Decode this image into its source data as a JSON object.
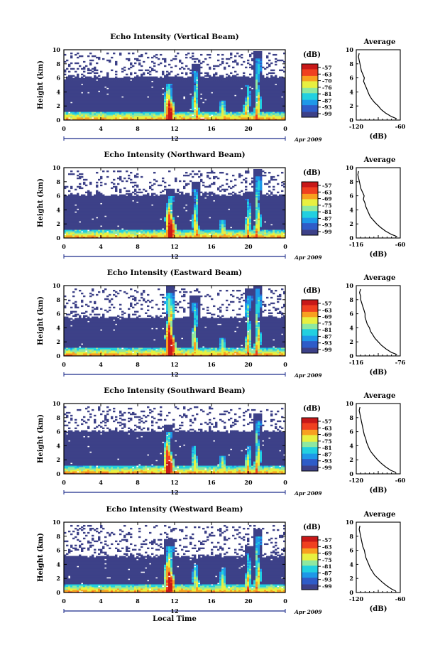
{
  "chart_data": [
    {
      "type": "heatmap",
      "title": "Echo Intensity (Vertical Beam)",
      "ylabel": "Height (km)",
      "xlim": [
        0,
        24
      ],
      "ylim": [
        0,
        10
      ],
      "x_ticks": [
        "0",
        "4",
        "8",
        "12",
        "16",
        "20",
        "0"
      ],
      "y_ticks": [
        "0",
        "2",
        "4",
        "6",
        "8",
        "10"
      ],
      "date_label": "12",
      "month_label": "Apr 2009",
      "colorbar": {
        "title": "(dB)",
        "ticks": [
          "-57",
          "-63",
          "-70",
          "-76",
          "-81",
          "-87",
          "-93",
          "-99"
        ]
      },
      "average": {
        "title": "Average",
        "xlabel": "(dB)",
        "xticks": [
          "-120",
          "-60"
        ],
        "xlim": [
          -120,
          -60
        ],
        "height": [
          0.2,
          0.5,
          1,
          1.5,
          2,
          2.5,
          3,
          3.5,
          4,
          4.5,
          5,
          5.5,
          6,
          6.5,
          7,
          7.5,
          8,
          8.5,
          9,
          9.5
        ],
        "value": [
          -65,
          -72,
          -80,
          -86,
          -90,
          -95,
          -99,
          -102,
          -104,
          -106,
          -108,
          -110,
          -109,
          -111,
          -113,
          -114,
          -115,
          -116,
          -117,
          -116
        ]
      },
      "features": [
        {
          "kind": "clear-air layer",
          "top_km": 6.2
        },
        {
          "kind": "echo plume",
          "time_h": 11.4,
          "peak_km": 5.2
        },
        {
          "kind": "echo plume",
          "time_h": 14.3,
          "peak_km": 7.0
        },
        {
          "kind": "echo plume",
          "time_h": 17.3,
          "peak_km": 2.8
        },
        {
          "kind": "echo plume",
          "time_h": 19.9,
          "peak_km": 5.0
        },
        {
          "kind": "echo plume",
          "time_h": 21.0,
          "peak_km": 8.8
        }
      ]
    },
    {
      "type": "heatmap",
      "title": "Echo Intensity (Northward Beam)",
      "ylabel": "Height (km)",
      "xlim": [
        0,
        24
      ],
      "ylim": [
        0,
        10
      ],
      "x_ticks": [
        "0",
        "4",
        "8",
        "12",
        "16",
        "20",
        "0"
      ],
      "y_ticks": [
        "0",
        "2",
        "4",
        "6",
        "8",
        "10"
      ],
      "date_label": "12",
      "month_label": "Apr 2009",
      "colorbar": {
        "title": "(dB)",
        "ticks": [
          "-57",
          "-63",
          "-69",
          "-75",
          "-81",
          "-87",
          "-93",
          "-99"
        ]
      },
      "average": {
        "title": "Average",
        "xlabel": "(dB)",
        "xticks": [
          "-116",
          "-60"
        ],
        "xlim": [
          -116,
          -60
        ],
        "height": [
          0.2,
          0.5,
          1,
          1.5,
          2,
          2.5,
          3,
          3.5,
          4,
          4.5,
          5,
          5.5,
          6,
          6.5,
          7,
          7.5,
          8,
          8.5,
          9,
          9.5
        ],
        "value": [
          -64,
          -71,
          -79,
          -85,
          -90,
          -94,
          -98,
          -100,
          -102,
          -104,
          -105,
          -107,
          -106,
          -108,
          -110,
          -111,
          -112,
          -113,
          -114,
          -113
        ]
      },
      "features": [
        {
          "kind": "clear-air layer",
          "top_km": 6.2
        },
        {
          "kind": "echo plume",
          "time_h": 11.5,
          "peak_km": 6.0
        },
        {
          "kind": "echo plume",
          "time_h": 14.3,
          "peak_km": 7.0
        },
        {
          "kind": "echo plume",
          "time_h": 17.3,
          "peak_km": 2.5
        },
        {
          "kind": "echo plume",
          "time_h": 20.0,
          "peak_km": 5.5
        },
        {
          "kind": "echo plume",
          "time_h": 21.0,
          "peak_km": 8.8
        }
      ]
    },
    {
      "type": "heatmap",
      "title": "Echo Intensity (Eastward Beam)",
      "ylabel": "Height (km)",
      "xlim": [
        0,
        24
      ],
      "ylim": [
        0,
        10
      ],
      "x_ticks": [
        "0",
        "4",
        "8",
        "12",
        "16",
        "20",
        "0"
      ],
      "y_ticks": [
        "0",
        "2",
        "4",
        "6",
        "8",
        "10"
      ],
      "date_label": "12",
      "month_label": "Apr 2009",
      "colorbar": {
        "title": "(dB)",
        "ticks": [
          "-57",
          "-63",
          "-69",
          "-75",
          "-81",
          "-87",
          "-93",
          "-99"
        ]
      },
      "average": {
        "title": "Average",
        "xlabel": "(dB)",
        "xticks": [
          "-116",
          "-76"
        ],
        "xlim": [
          -116,
          -76
        ],
        "height": [
          0.2,
          0.5,
          1,
          1.5,
          2,
          2.5,
          3,
          3.5,
          4,
          4.5,
          5,
          5.5,
          6,
          6.5,
          7,
          7.5,
          8,
          8.5,
          9,
          9.5
        ],
        "value": [
          -79,
          -84,
          -89,
          -93,
          -96,
          -99,
          -101,
          -103,
          -104,
          -106,
          -107,
          -108,
          -108,
          -109,
          -110,
          -111,
          -112,
          -112,
          -113,
          -112
        ]
      },
      "features": [
        {
          "kind": "clear-air layer",
          "top_km": 5.5
        },
        {
          "kind": "echo plume",
          "time_h": 11.5,
          "peak_km": 9.0
        },
        {
          "kind": "echo plume",
          "time_h": 14.2,
          "peak_km": 7.5
        },
        {
          "kind": "echo plume",
          "time_h": 17.3,
          "peak_km": 2.5
        },
        {
          "kind": "echo plume",
          "time_h": 20.0,
          "peak_km": 8.5
        },
        {
          "kind": "echo plume",
          "time_h": 21.0,
          "peak_km": 9.5
        }
      ]
    },
    {
      "type": "heatmap",
      "title": "Echo Intensity (Southward Beam)",
      "ylabel": "Height (km)",
      "xlim": [
        0,
        24
      ],
      "ylim": [
        0,
        10
      ],
      "x_ticks": [
        "0",
        "4",
        "8",
        "12",
        "16",
        "20",
        "0"
      ],
      "y_ticks": [
        "0",
        "2",
        "4",
        "6",
        "8",
        "10"
      ],
      "date_label": "12",
      "month_label": "Apr 2009",
      "colorbar": {
        "title": "(dB)",
        "ticks": [
          "-57",
          "-63",
          "-69",
          "-75",
          "-81",
          "-87",
          "-93",
          "-99"
        ]
      },
      "average": {
        "title": "Average",
        "xlabel": "(dB)",
        "xticks": [
          "-120",
          "-60"
        ],
        "xlim": [
          -120,
          -60
        ],
        "height": [
          0.2,
          0.5,
          1,
          1.5,
          2,
          2.5,
          3,
          3.5,
          4,
          4.5,
          5,
          5.5,
          6,
          6.5,
          7,
          7.5,
          8,
          8.5,
          9,
          9.5
        ],
        "value": [
          -66,
          -73,
          -80,
          -86,
          -91,
          -95,
          -99,
          -102,
          -104,
          -106,
          -107,
          -109,
          -110,
          -111,
          -112,
          -113,
          -114,
          -115,
          -116,
          -115
        ]
      },
      "features": [
        {
          "kind": "clear-air layer",
          "top_km": 6.1
        },
        {
          "kind": "echo plume",
          "time_h": 11.3,
          "peak_km": 6.0
        },
        {
          "kind": "echo plume",
          "time_h": 14.2,
          "peak_km": 4.0
        },
        {
          "kind": "echo plume",
          "time_h": 17.3,
          "peak_km": 2.5
        },
        {
          "kind": "echo plume",
          "time_h": 20.0,
          "peak_km": 4.0
        },
        {
          "kind": "echo plume",
          "time_h": 21.0,
          "peak_km": 7.5
        }
      ]
    },
    {
      "type": "heatmap",
      "title": "Echo Intensity (Westward Beam)",
      "ylabel": "Height (km)",
      "xlabel": "Local Time",
      "xlim": [
        0,
        24
      ],
      "ylim": [
        0,
        10
      ],
      "x_ticks": [
        "0",
        "4",
        "8",
        "12",
        "16",
        "20",
        "0"
      ],
      "y_ticks": [
        "0",
        "2",
        "4",
        "6",
        "8",
        "10"
      ],
      "date_label": "12",
      "month_label": "Apr 2009",
      "colorbar": {
        "title": "(dB)",
        "ticks": [
          "-57",
          "-63",
          "-69",
          "-75",
          "-81",
          "-87",
          "-93",
          "-99"
        ]
      },
      "average": {
        "title": "Average",
        "xlabel": "(dB)",
        "xticks": [
          "-120",
          "-60"
        ],
        "xlim": [
          -120,
          -60
        ],
        "height": [
          0.2,
          0.5,
          1,
          1.5,
          2,
          2.5,
          3,
          3.5,
          4,
          4.5,
          5,
          5.5,
          6,
          6.5,
          7,
          7.5,
          8,
          8.5,
          9,
          9.5
        ],
        "value": [
          -66,
          -72,
          -79,
          -85,
          -90,
          -95,
          -98,
          -101,
          -103,
          -105,
          -107,
          -108,
          -109,
          -111,
          -112,
          -113,
          -114,
          -115,
          -116,
          -115
        ]
      },
      "features": [
        {
          "kind": "clear-air layer",
          "top_km": 5.2
        },
        {
          "kind": "echo plume",
          "time_h": 11.4,
          "peak_km": 6.5
        },
        {
          "kind": "echo plume",
          "time_h": 14.3,
          "peak_km": 4.0
        },
        {
          "kind": "echo plume",
          "time_h": 17.3,
          "peak_km": 3.5
        },
        {
          "kind": "echo plume",
          "time_h": 20.0,
          "peak_km": 5.5
        },
        {
          "kind": "echo plume",
          "time_h": 21.0,
          "peak_km": 8.0
        }
      ]
    }
  ],
  "colors": {
    "background": "#3d4188",
    "colormap": [
      "#3d4188",
      "#2f5cc8",
      "#1e98e8",
      "#22d0e0",
      "#8ee8a0",
      "#e8f040",
      "#f8a020",
      "#f04020",
      "#c81818"
    ]
  }
}
